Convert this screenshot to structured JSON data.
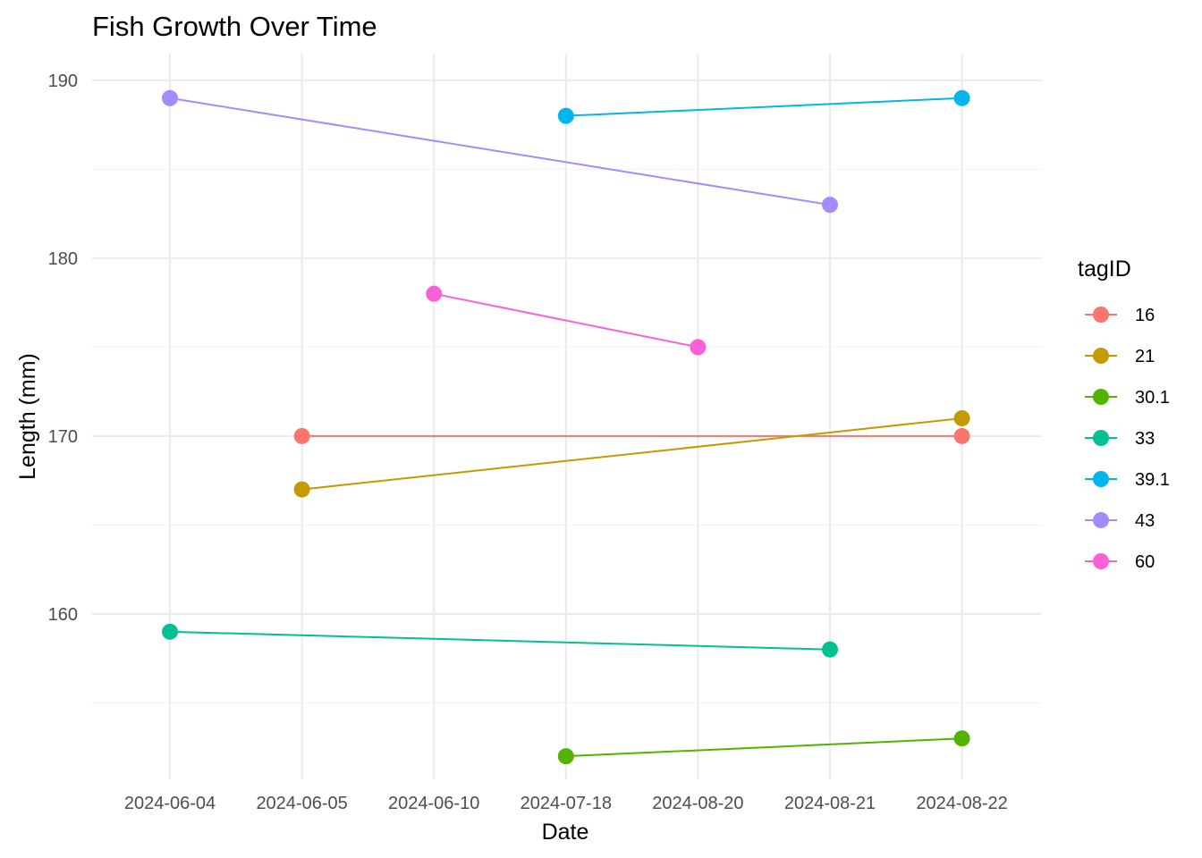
{
  "chart_data": {
    "type": "line",
    "title": "Fish Growth Over Time",
    "xlabel": "Date",
    "ylabel": "Length (mm)",
    "categories": [
      "2024-06-04",
      "2024-06-05",
      "2024-06-10",
      "2024-07-18",
      "2024-08-20",
      "2024-08-21",
      "2024-08-22"
    ],
    "x_scale": "discrete",
    "ylim": [
      150.7,
      191.5
    ],
    "y_ticks": [
      160,
      170,
      180,
      190
    ],
    "y_minor_ticks": [
      155,
      165,
      175,
      185
    ],
    "grid": true,
    "legend": {
      "title": "tagID",
      "position": "right"
    },
    "series": [
      {
        "name": "16",
        "color": "#F8766D",
        "points": [
          {
            "x": "2024-06-05",
            "y": 170
          },
          {
            "x": "2024-08-22",
            "y": 170
          }
        ]
      },
      {
        "name": "21",
        "color": "#C49A00",
        "points": [
          {
            "x": "2024-06-05",
            "y": 167
          },
          {
            "x": "2024-08-22",
            "y": 171
          }
        ]
      },
      {
        "name": "30.1",
        "color": "#53B400",
        "points": [
          {
            "x": "2024-07-18",
            "y": 152
          },
          {
            "x": "2024-08-22",
            "y": 153
          }
        ]
      },
      {
        "name": "33",
        "color": "#00C094",
        "points": [
          {
            "x": "2024-06-04",
            "y": 159
          },
          {
            "x": "2024-08-21",
            "y": 158
          }
        ]
      },
      {
        "name": "39.1",
        "color": "#00B6EB",
        "points": [
          {
            "x": "2024-07-18",
            "y": 188
          },
          {
            "x": "2024-08-22",
            "y": 189
          }
        ]
      },
      {
        "name": "43",
        "color": "#A58AFF",
        "points": [
          {
            "x": "2024-06-04",
            "y": 189
          },
          {
            "x": "2024-08-21",
            "y": 183
          }
        ]
      },
      {
        "name": "60",
        "color": "#FB61D7",
        "points": [
          {
            "x": "2024-06-10",
            "y": 178
          },
          {
            "x": "2024-08-20",
            "y": 175
          }
        ]
      }
    ]
  }
}
